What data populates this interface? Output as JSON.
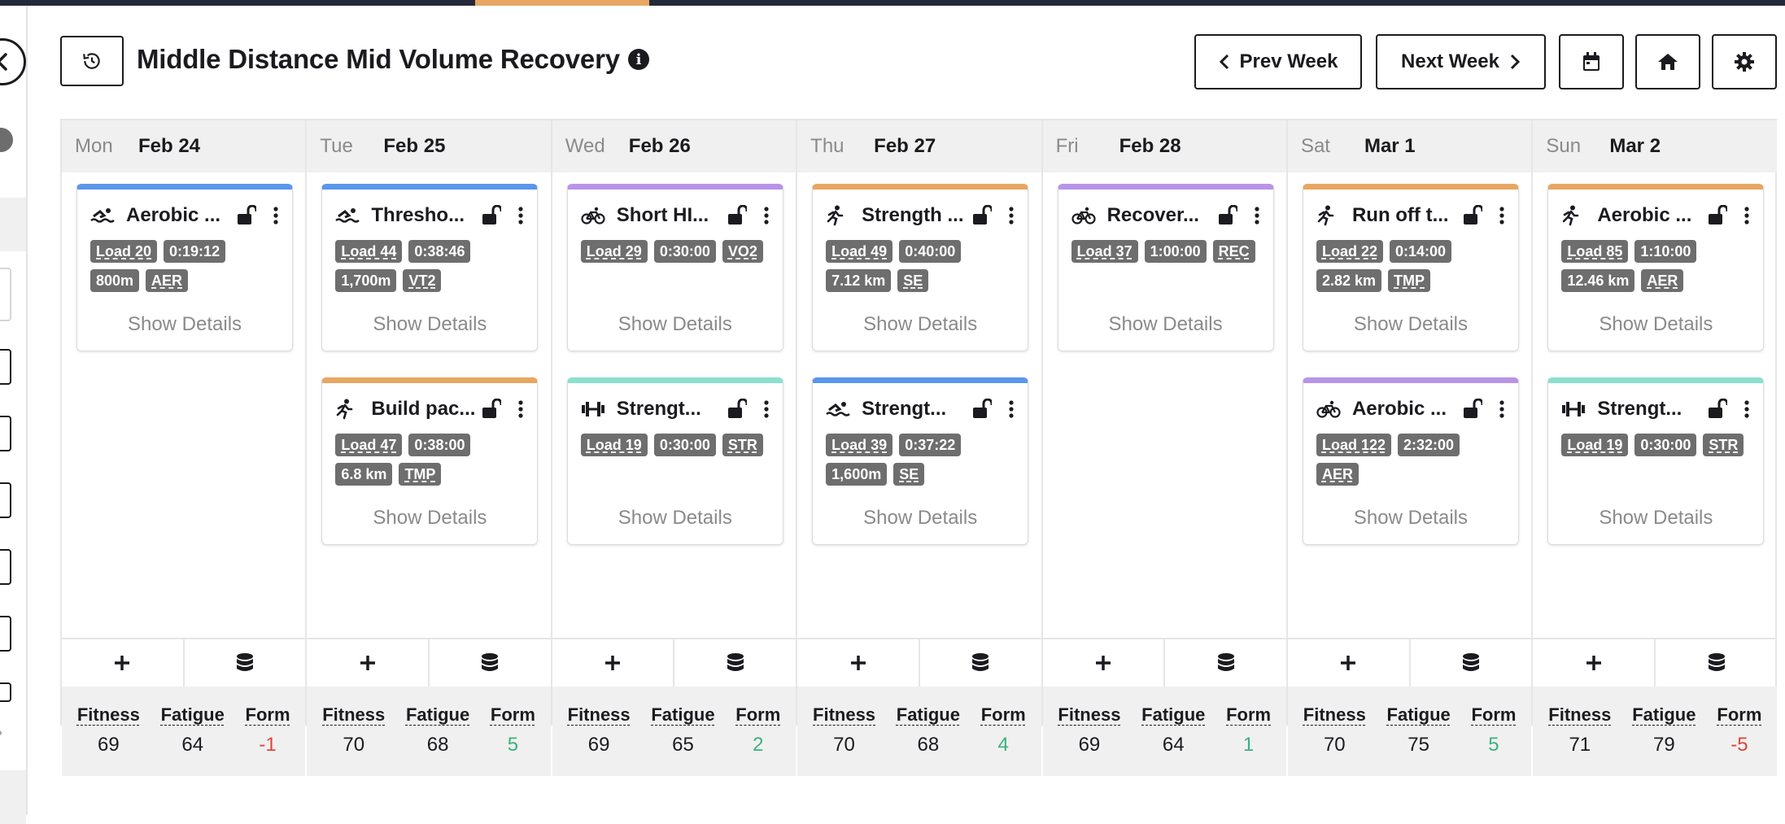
{
  "header": {
    "title": "Middle Distance Mid Volume Recovery",
    "info_icon": "i",
    "prev_label": "Prev Week",
    "next_label": "Next Week"
  },
  "colors": {
    "swim": "#5a96ec",
    "bike": "#b894e8",
    "run": "#e8a662",
    "strength": "#8be0cf",
    "positive": "#3ab283",
    "negative": "#e0453a"
  },
  "metric_labels": {
    "fitness": "Fitness",
    "fatigue": "Fatigue",
    "form": "Form"
  },
  "show_details_label": "Show Details",
  "days": [
    {
      "dow": "Mon",
      "date": "Feb 24",
      "workouts": [
        {
          "sport": "swim",
          "title": "Aerobic ...",
          "load": "Load 20",
          "duration": "0:19:12",
          "distance": "800m",
          "zone": "AER"
        }
      ],
      "fitness": "69",
      "fatigue": "64",
      "form": "-1"
    },
    {
      "dow": "Tue",
      "date": "Feb 25",
      "workouts": [
        {
          "sport": "swim",
          "title": "Thresho...",
          "load": "Load 44",
          "duration": "0:38:46",
          "distance": "1,700m",
          "zone": "VT2"
        },
        {
          "sport": "run",
          "title": "Build pac...",
          "load": "Load 47",
          "duration": "0:38:00",
          "distance": "6.8 km",
          "zone": "TMP"
        }
      ],
      "fitness": "70",
      "fatigue": "68",
      "form": "5"
    },
    {
      "dow": "Wed",
      "date": "Feb 26",
      "workouts": [
        {
          "sport": "bike",
          "title": "Short HI...",
          "load": "Load 29",
          "duration": "0:30:00",
          "distance": "",
          "zone": "VO2"
        },
        {
          "sport": "strength",
          "title": "Strengt...",
          "load": "Load 19",
          "duration": "0:30:00",
          "distance": "",
          "zone": "STR"
        }
      ],
      "fitness": "69",
      "fatigue": "65",
      "form": "2"
    },
    {
      "dow": "Thu",
      "date": "Feb 27",
      "workouts": [
        {
          "sport": "run",
          "title": "Strength ...",
          "load": "Load 49",
          "duration": "0:40:00",
          "distance": "7.12 km",
          "zone": "SE"
        },
        {
          "sport": "swim",
          "title": "Strengt...",
          "load": "Load 39",
          "duration": "0:37:22",
          "distance": "1,600m",
          "zone": "SE"
        }
      ],
      "fitness": "70",
      "fatigue": "68",
      "form": "4"
    },
    {
      "dow": "Fri",
      "date": "Feb 28",
      "workouts": [
        {
          "sport": "bike",
          "title": "Recover...",
          "load": "Load 37",
          "duration": "1:00:00",
          "distance": "",
          "zone": "REC"
        }
      ],
      "fitness": "69",
      "fatigue": "64",
      "form": "1"
    },
    {
      "dow": "Sat",
      "date": "Mar 1",
      "workouts": [
        {
          "sport": "run",
          "title": "Run off t...",
          "load": "Load 22",
          "duration": "0:14:00",
          "distance": "2.82 km",
          "zone": "TMP"
        },
        {
          "sport": "bike",
          "title": "Aerobic ...",
          "load": "Load 122",
          "duration": "2:32:00",
          "distance": "",
          "zone": "AER"
        }
      ],
      "fitness": "70",
      "fatigue": "75",
      "form": "5"
    },
    {
      "dow": "Sun",
      "date": "Mar 2",
      "workouts": [
        {
          "sport": "run",
          "title": "Aerobic ...",
          "load": "Load 85",
          "duration": "1:10:00",
          "distance": "12.46 km",
          "zone": "AER"
        },
        {
          "sport": "strength",
          "title": "Strengt...",
          "load": "Load 19",
          "duration": "0:30:00",
          "distance": "",
          "zone": "STR"
        }
      ],
      "fitness": "71",
      "fatigue": "79",
      "form": "-5"
    }
  ]
}
